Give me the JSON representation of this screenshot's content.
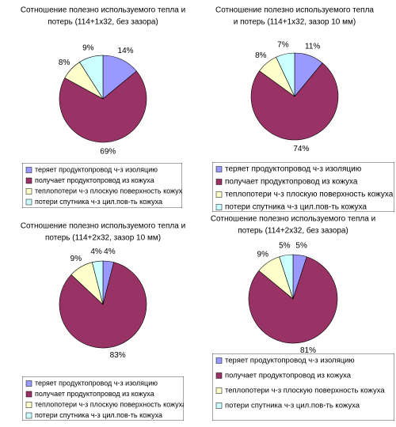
{
  "chart_data": [
    {
      "type": "pie",
      "title": [
        "Сотношение полезно используемого тепла и",
        "потерь (114+1х32, без зазора)"
      ],
      "categories": [
        "теряет продуктопровод ч-з изоляцию",
        "получает продуктопровод из кожуха",
        "теплопотери ч-з плоскую поверхность кожуха",
        "потери спутника ч-з цил.пов-ть кожуха"
      ],
      "values": [
        14,
        69,
        8,
        9
      ],
      "value_labels": [
        "14%",
        "69%",
        "8%",
        "9%"
      ],
      "colors": [
        "#9999ff",
        "#993366",
        "#ffffcc",
        "#ccffff"
      ]
    },
    {
      "type": "pie",
      "title": [
        "Сотношение полезно используемого тепла",
        "и потерь (114+1х32, зазор 10 мм)"
      ],
      "categories": [
        "теряет продуктопровод ч-з изоляцию",
        "получает продуктопровод из кожуха",
        "теплопотери ч-з плоскую поверхность кожуха",
        "потери спутника ч-з цил.пов-ть кожуха"
      ],
      "values": [
        11,
        74,
        8,
        7
      ],
      "value_labels": [
        "11%",
        "74%",
        "8%",
        "7%"
      ],
      "colors": [
        "#9999ff",
        "#993366",
        "#ffffcc",
        "#ccffff"
      ]
    },
    {
      "type": "pie",
      "title": [
        "Сотношение полезно используемого тепла и",
        "потерь (114+2х32, зазор 10 мм)"
      ],
      "categories": [
        "теряет продуктопровод ч-з изоляцию",
        "получает продуктопровод из кожуха",
        "теплопотери ч-з плоскую поверхность кожуха",
        "потери спутника ч-з цил.пов-ть кожуха"
      ],
      "values": [
        4,
        83,
        9,
        4
      ],
      "value_labels": [
        "4%",
        "83%",
        "9%",
        "4%"
      ],
      "colors": [
        "#9999ff",
        "#993366",
        "#ffffcc",
        "#ccffff"
      ]
    },
    {
      "type": "pie",
      "title": [
        "Сотношение полезно используемого тепла и",
        "потерь (114+2х32, без зазора)"
      ],
      "categories": [
        "теряет продуктопровод ч-з изоляцию",
        "получает продуктопровод из кожуха",
        "теплопотери ч-з плоскую поверхность кожуха",
        "потери спутника ч-з цил.пов-ть кожуха"
      ],
      "values": [
        5,
        81,
        9,
        5
      ],
      "value_labels": [
        "5%",
        "81%",
        "9%",
        "5%"
      ],
      "colors": [
        "#9999ff",
        "#993366",
        "#ffffcc",
        "#ccffff"
      ]
    }
  ]
}
